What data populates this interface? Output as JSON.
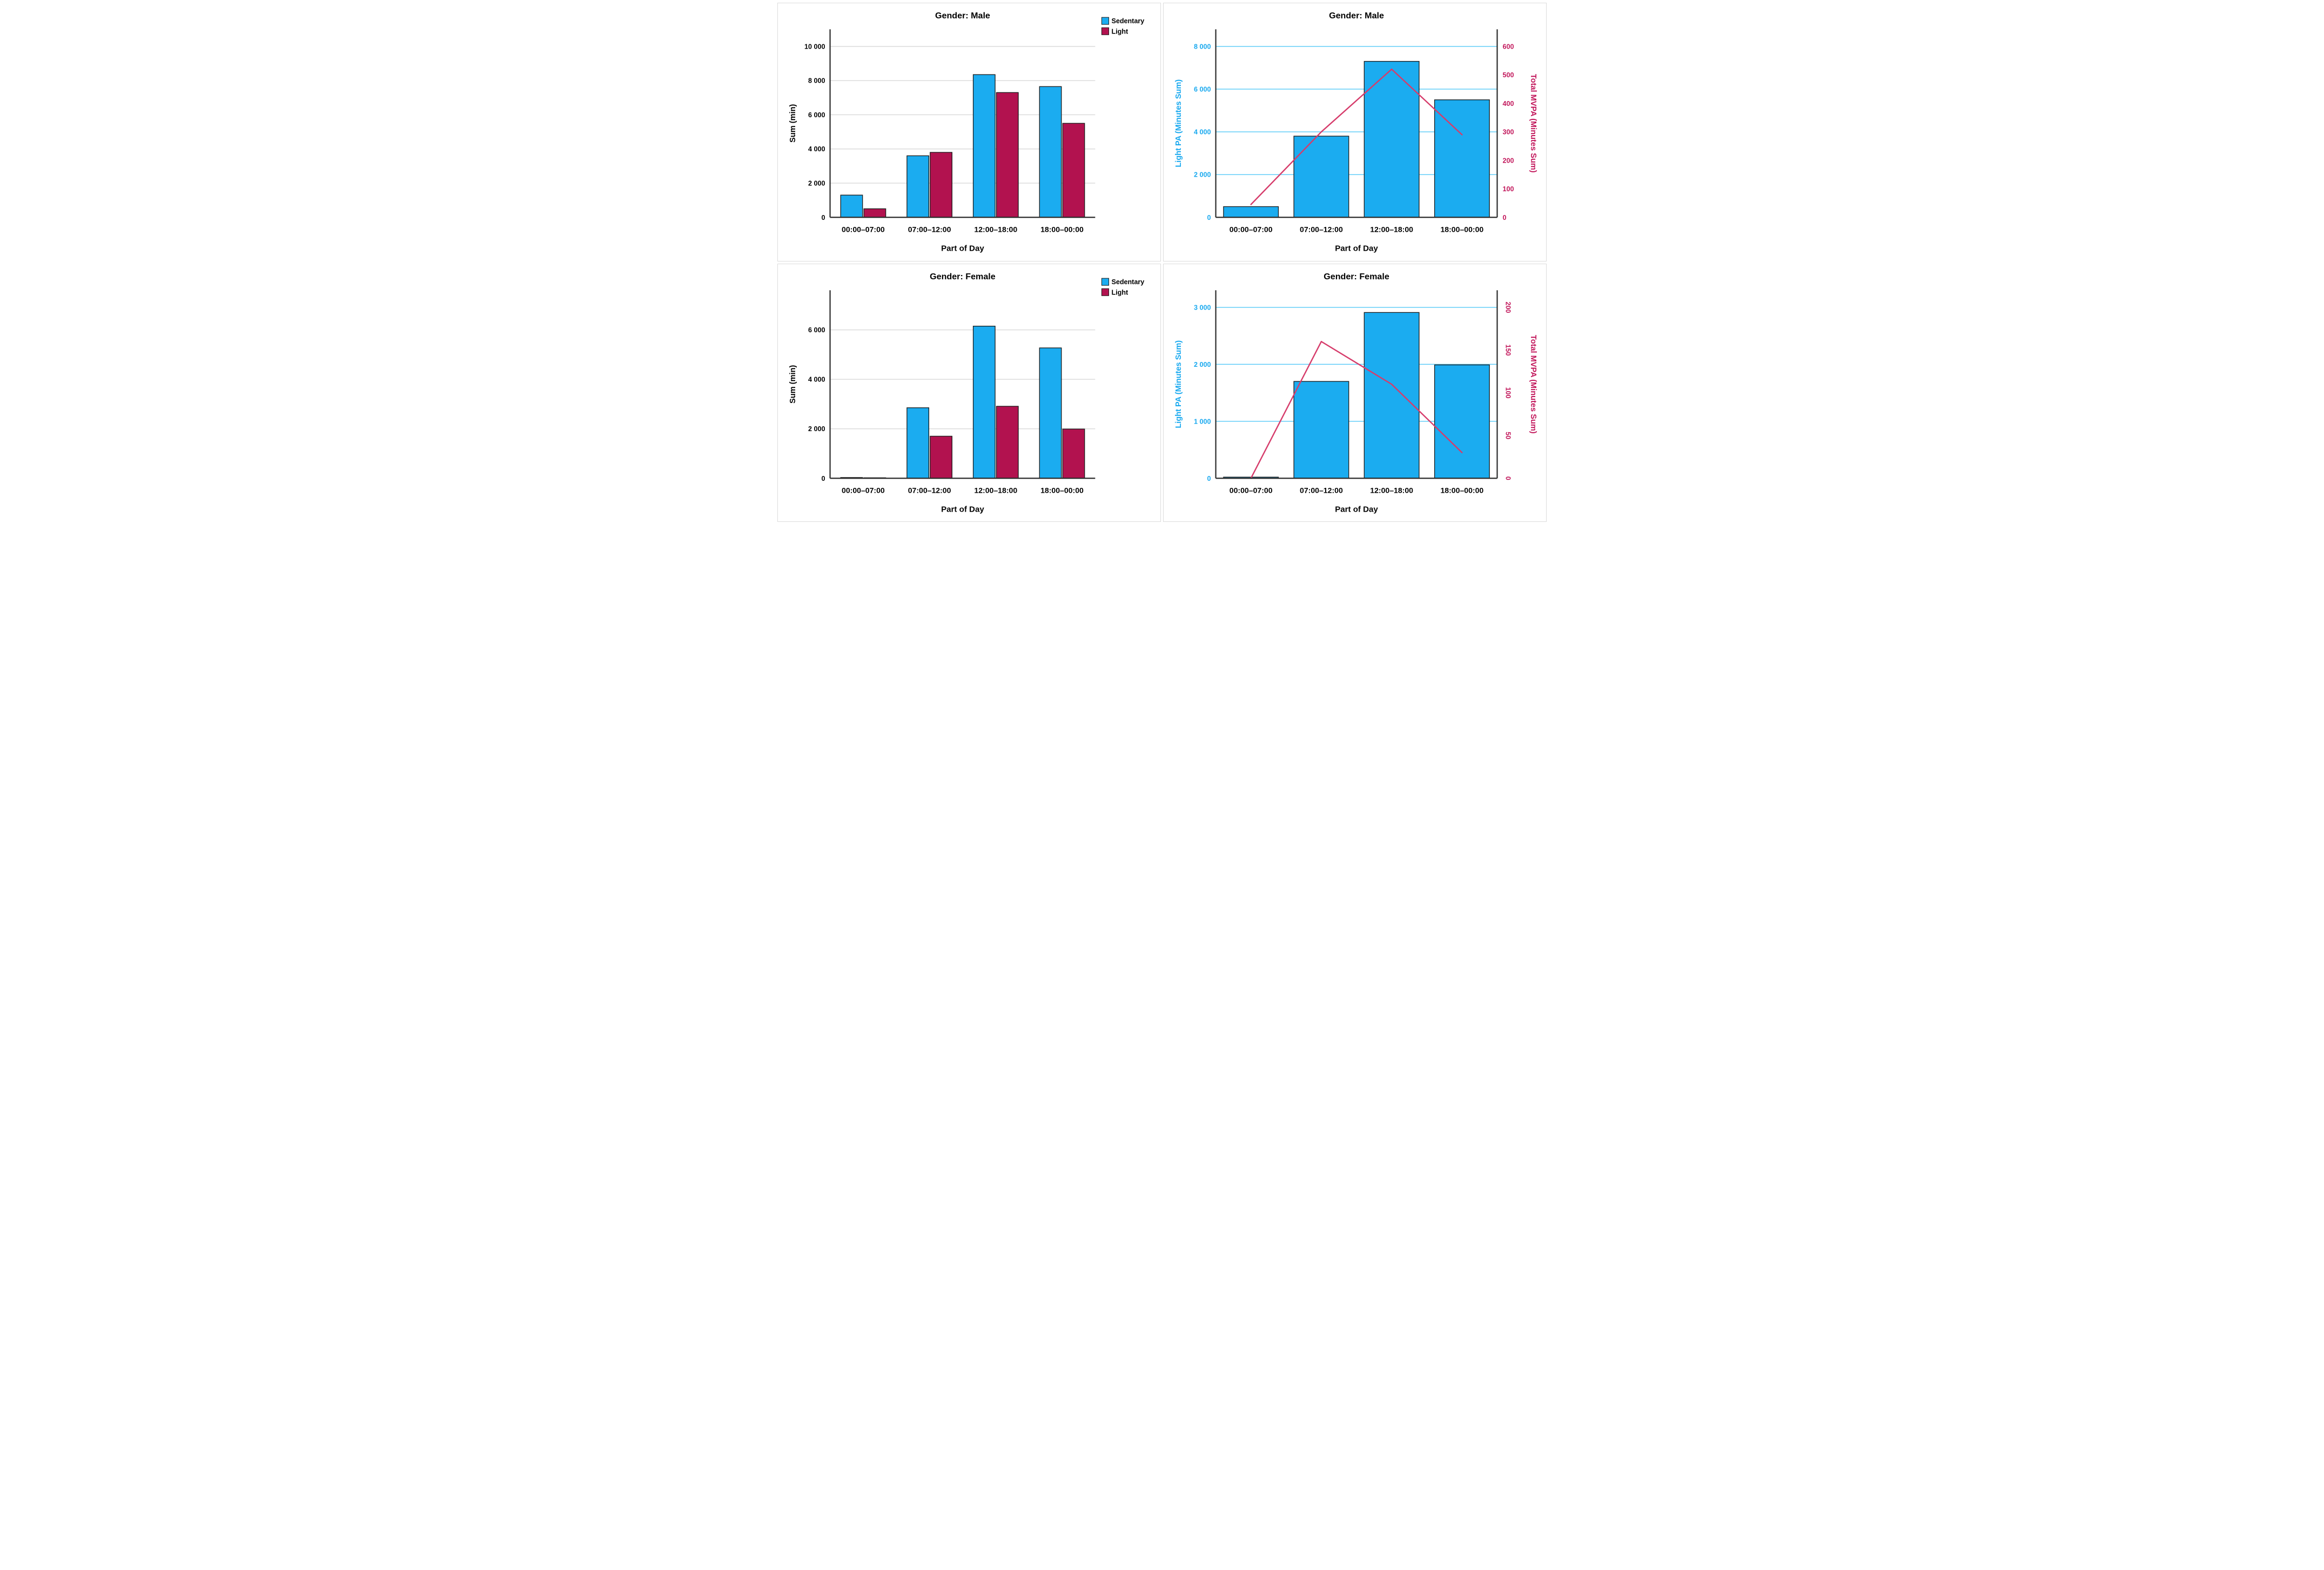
{
  "colors": {
    "bar_blue": "#1BACF0",
    "bar_crimson": "#B2124F",
    "line_pink": "#D63C6B",
    "grid_gray": "#D8D8D8",
    "grid_blue": "#55C9F8",
    "axis_line": "#2B2B2B",
    "left_axis_blue": "#19A9EF",
    "right_axis_crimson": "#C2175B",
    "black": "#000000",
    "legend_text": "#000000"
  },
  "chart_data": [
    {
      "id": "male-grouped",
      "type": "grouped_bar",
      "title": "Gender: Male",
      "x_label": "Part of Day",
      "categories": [
        "00:00–07:00",
        "07:00–12:00",
        "12:00–18:00",
        "18:00–00:00"
      ],
      "grid_color_key": "grid_gray",
      "left_axis": {
        "label": "Sum (min)",
        "label_color_key": "black",
        "tick_color_key": "black",
        "max": 11000,
        "ticks": [
          {
            "label": "0",
            "value": 0
          },
          {
            "label": "2 000",
            "value": 2000
          },
          {
            "label": "4 000",
            "value": 4000
          },
          {
            "label": "6 000",
            "value": 6000
          },
          {
            "label": "8 000",
            "value": 8000
          },
          {
            "label": "10 000",
            "value": 10000
          }
        ]
      },
      "legend": [
        {
          "label": "Sedentary",
          "color_key": "bar_blue"
        },
        {
          "label": "Light",
          "color_key": "bar_crimson"
        }
      ],
      "series": [
        {
          "name": "Sedentary",
          "kind": "bar",
          "axis": "left",
          "color_key": "bar_blue",
          "values": [
            1300,
            3600,
            8350,
            7650
          ]
        },
        {
          "name": "Light",
          "kind": "bar",
          "axis": "left",
          "color_key": "bar_crimson",
          "values": [
            500,
            3800,
            7300,
            5500
          ]
        }
      ]
    },
    {
      "id": "male-dual",
      "type": "bar_line_dual",
      "title": "Gender: Male",
      "x_label": "Part of Day",
      "categories": [
        "00:00–07:00",
        "07:00–12:00",
        "12:00–18:00",
        "18:00–00:00"
      ],
      "grid_color_key": "grid_blue",
      "left_axis": {
        "label": "Light PA (Minutes Sum)",
        "label_color_key": "left_axis_blue",
        "tick_color_key": "left_axis_blue",
        "max": 8800,
        "ticks": [
          {
            "label": "0",
            "value": 0
          },
          {
            "label": "2 000",
            "value": 2000
          },
          {
            "label": "4 000",
            "value": 4000
          },
          {
            "label": "6 000",
            "value": 6000
          },
          {
            "label": "8 000",
            "value": 8000
          }
        ]
      },
      "right_axis": {
        "label": "Total MVPA (Minutes Sum)",
        "label_color_key": "right_axis_crimson",
        "tick_color_key": "right_axis_crimson",
        "max": 660,
        "rotate_ticks": false,
        "ticks": [
          {
            "label": "0",
            "value": 0
          },
          {
            "label": "100",
            "value": 100
          },
          {
            "label": "200",
            "value": 200
          },
          {
            "label": "300",
            "value": 300
          },
          {
            "label": "400",
            "value": 400
          },
          {
            "label": "500",
            "value": 500
          },
          {
            "label": "600",
            "value": 600
          }
        ]
      },
      "series": [
        {
          "name": "Light PA",
          "kind": "bar",
          "axis": "left",
          "color_key": "bar_blue",
          "values": [
            500,
            3800,
            7300,
            5500
          ]
        },
        {
          "name": "Total MVPA",
          "kind": "line",
          "axis": "right",
          "color_key": "line_pink",
          "values": [
            45,
            300,
            520,
            290
          ]
        }
      ]
    },
    {
      "id": "female-grouped",
      "type": "grouped_bar",
      "title": "Gender: Female",
      "x_label": "Part of Day",
      "categories": [
        "00:00–07:00",
        "07:00–12:00",
        "12:00–18:00",
        "18:00–00:00"
      ],
      "grid_color_key": "grid_gray",
      "left_axis": {
        "label": "Sum (min)",
        "label_color_key": "black",
        "tick_color_key": "black",
        "max": 7600,
        "ticks": [
          {
            "label": "0",
            "value": 0
          },
          {
            "label": "2 000",
            "value": 2000
          },
          {
            "label": "4 000",
            "value": 4000
          },
          {
            "label": "6 000",
            "value": 6000
          }
        ]
      },
      "legend": [
        {
          "label": "Sedentary",
          "color_key": "bar_blue"
        },
        {
          "label": "Light",
          "color_key": "bar_crimson"
        }
      ],
      "series": [
        {
          "name": "Sedentary",
          "kind": "bar",
          "axis": "left",
          "color_key": "bar_blue",
          "values": [
            30,
            2850,
            6150,
            5270
          ]
        },
        {
          "name": "Light",
          "kind": "bar",
          "axis": "left",
          "color_key": "bar_crimson",
          "values": [
            20,
            1700,
            2910,
            1990
          ]
        }
      ]
    },
    {
      "id": "female-dual",
      "type": "bar_line_dual",
      "title": "Gender: Female",
      "x_label": "Part of Day",
      "categories": [
        "00:00–07:00",
        "07:00–12:00",
        "12:00–18:00",
        "18:00–00:00"
      ],
      "grid_color_key": "grid_blue",
      "left_axis": {
        "label": "Light PA (Minutes Sum)",
        "label_color_key": "left_axis_blue",
        "tick_color_key": "left_axis_blue",
        "max": 3300,
        "ticks": [
          {
            "label": "0",
            "value": 0
          },
          {
            "label": "1 000",
            "value": 1000
          },
          {
            "label": "2 000",
            "value": 2000
          },
          {
            "label": "3 000",
            "value": 3000
          }
        ]
      },
      "right_axis": {
        "label": "Total MVPA (Minutes Sum)",
        "label_color_key": "right_axis_crimson",
        "tick_color_key": "right_axis_crimson",
        "max": 220,
        "rotate_ticks": true,
        "ticks": [
          {
            "label": "0",
            "value": 0
          },
          {
            "label": "50",
            "value": 50
          },
          {
            "label": "100",
            "value": 100
          },
          {
            "label": "150",
            "value": 150
          },
          {
            "label": "200",
            "value": 200
          }
        ]
      },
      "series": [
        {
          "name": "Light PA",
          "kind": "bar",
          "axis": "left",
          "color_key": "bar_blue",
          "values": [
            20,
            1700,
            2910,
            1990
          ]
        },
        {
          "name": "Total MVPA",
          "kind": "line",
          "axis": "right",
          "color_key": "line_pink",
          "values": [
            0,
            160,
            110,
            30
          ]
        }
      ]
    }
  ]
}
